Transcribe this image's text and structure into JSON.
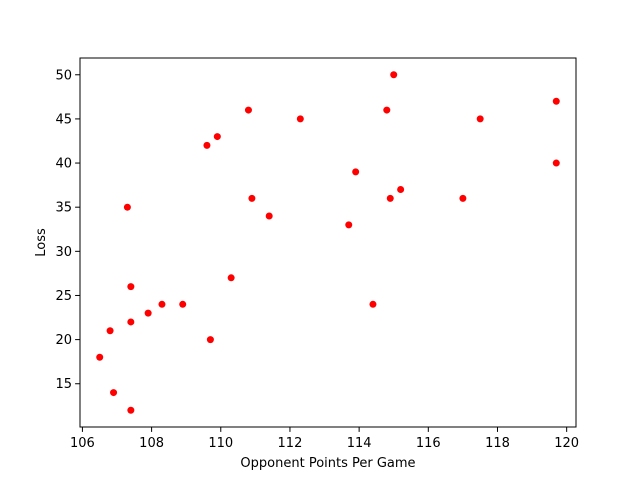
{
  "chart_data": {
    "type": "scatter",
    "title": "",
    "xlabel": "Opponent Points Per Game",
    "ylabel": "Loss",
    "xlim": [
      105.93,
      120.27
    ],
    "ylim": [
      10.1,
      51.9
    ],
    "xticks": [
      106,
      108,
      110,
      112,
      114,
      116,
      118,
      120
    ],
    "yticks": [
      15,
      20,
      25,
      30,
      35,
      40,
      45,
      50
    ],
    "grid": false,
    "legend": "none",
    "marker_color": "#ff0000",
    "points": [
      {
        "x": 106.5,
        "y": 18
      },
      {
        "x": 106.8,
        "y": 21
      },
      {
        "x": 106.9,
        "y": 14
      },
      {
        "x": 107.3,
        "y": 35
      },
      {
        "x": 107.4,
        "y": 26
      },
      {
        "x": 107.4,
        "y": 22
      },
      {
        "x": 107.4,
        "y": 12
      },
      {
        "x": 107.9,
        "y": 23
      },
      {
        "x": 108.3,
        "y": 24
      },
      {
        "x": 108.9,
        "y": 24
      },
      {
        "x": 109.6,
        "y": 42
      },
      {
        "x": 109.7,
        "y": 20
      },
      {
        "x": 109.9,
        "y": 43
      },
      {
        "x": 110.3,
        "y": 27
      },
      {
        "x": 110.8,
        "y": 46
      },
      {
        "x": 110.9,
        "y": 36
      },
      {
        "x": 111.4,
        "y": 34
      },
      {
        "x": 112.3,
        "y": 45
      },
      {
        "x": 113.7,
        "y": 33
      },
      {
        "x": 113.9,
        "y": 39
      },
      {
        "x": 114.4,
        "y": 24
      },
      {
        "x": 114.8,
        "y": 46
      },
      {
        "x": 114.9,
        "y": 36
      },
      {
        "x": 115.0,
        "y": 50
      },
      {
        "x": 115.2,
        "y": 37
      },
      {
        "x": 117.0,
        "y": 36
      },
      {
        "x": 117.5,
        "y": 45
      },
      {
        "x": 119.7,
        "y": 47
      },
      {
        "x": 119.7,
        "y": 40
      }
    ]
  }
}
